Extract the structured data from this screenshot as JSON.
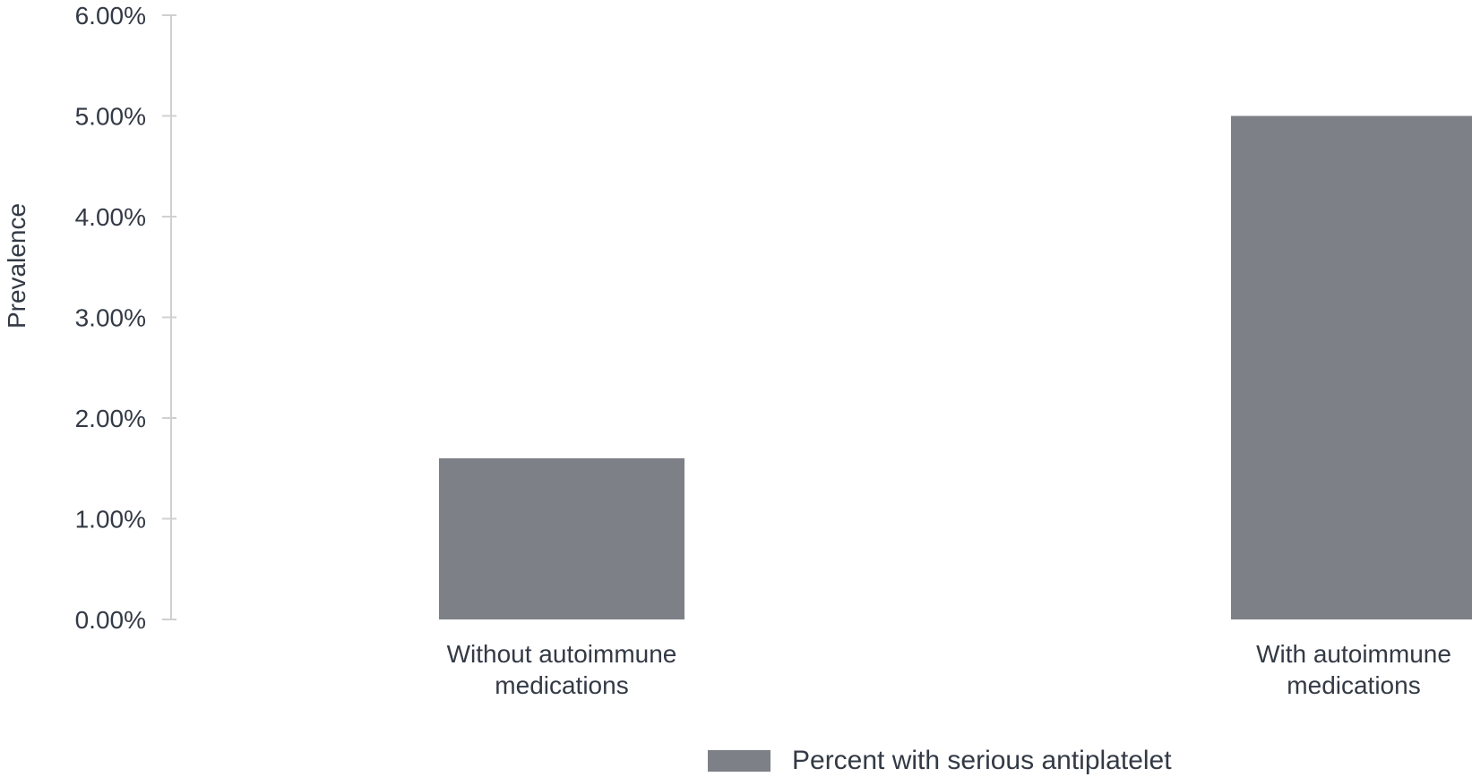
{
  "chart_data": {
    "type": "bar",
    "title": "",
    "xlabel": "",
    "ylabel": "Prevalence",
    "ylim": [
      0,
      0.06
    ],
    "y_ticks": [
      0,
      0.01,
      0.02,
      0.03,
      0.04,
      0.05,
      0.06
    ],
    "y_tick_labels": [
      "0.00%",
      "1.00%",
      "2.00%",
      "3.00%",
      "4.00%",
      "5.00%",
      "6.00%"
    ],
    "categories": [
      [
        "Without autoimmune",
        "medications"
      ],
      [
        "With autoimmune",
        "medications"
      ]
    ],
    "series": [
      {
        "name": "Percent with serious antiplatelet",
        "values": [
          0.016,
          0.05
        ],
        "color": "#7e8087"
      }
    ],
    "grid": false,
    "legend_position": "bottom"
  },
  "colors": {
    "axis": "#d0d0d0",
    "text": "#333a45"
  }
}
